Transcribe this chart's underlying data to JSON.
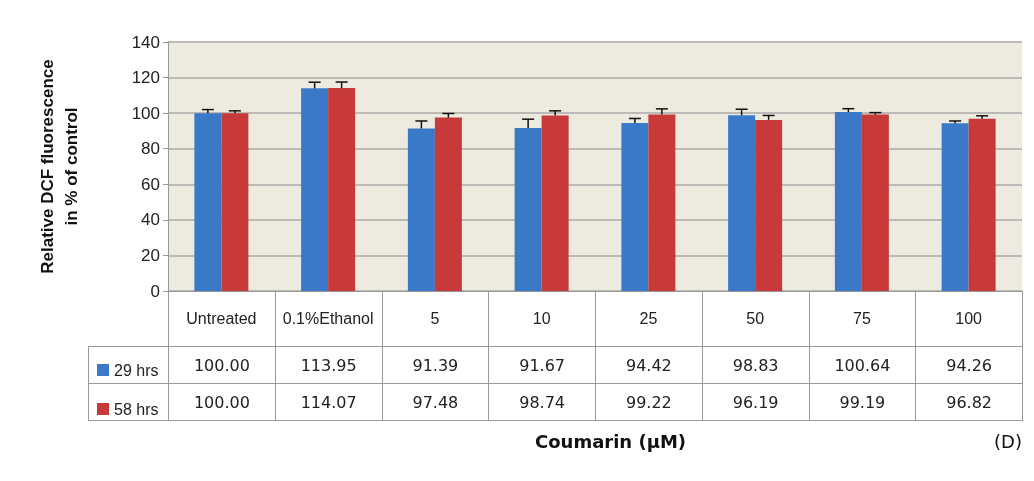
{
  "chart_data": {
    "type": "bar",
    "ylabel": "Relative DCF fluorescence in % of control",
    "annotations": [
      "Coumarin (µM)",
      "(D)"
    ],
    "categories": [
      "Untreated",
      "0.1%Ethanol",
      "5",
      "10",
      "25",
      "50",
      "75",
      "100"
    ],
    "series": [
      {
        "name": "29 hrs",
        "color": "#3a78c8",
        "values": [
          100.0,
          113.95,
          91.39,
          91.67,
          94.42,
          98.83,
          100.64,
          94.26
        ],
        "value_labels": [
          "100.00",
          "113.95",
          "91.39",
          "91.67",
          "94.42",
          "98.83",
          "100.64",
          "94.26"
        ],
        "errors": [
          [
            100.0,
            102.0
          ],
          [
            113.95,
            117.4
          ],
          [
            91.39,
            95.6
          ],
          [
            91.67,
            96.6
          ],
          [
            94.42,
            97.0
          ],
          [
            98.83,
            102.2
          ],
          [
            100.64,
            102.5
          ],
          [
            94.26,
            95.6
          ]
        ]
      },
      {
        "name": "58 hrs",
        "color": "#c83a3a",
        "values": [
          100.0,
          114.07,
          97.48,
          98.74,
          99.22,
          96.19,
          99.19,
          96.82
        ],
        "value_labels": [
          "100.00",
          "114.07",
          "97.48",
          "98.74",
          "99.22",
          "96.19",
          "99.19",
          "96.82"
        ],
        "errors": [
          [
            100.0,
            101.3
          ],
          [
            114.07,
            117.5
          ],
          [
            97.48,
            99.8
          ],
          [
            98.74,
            101.3
          ],
          [
            99.22,
            102.4
          ],
          [
            96.19,
            98.7
          ],
          [
            99.19,
            100.3
          ],
          [
            96.82,
            98.5
          ]
        ]
      }
    ],
    "ylim": [
      0,
      140
    ],
    "yticks": [
      0,
      20,
      40,
      60,
      80,
      100,
      120,
      140
    ],
    "grid": "y",
    "legend": "bottom left"
  }
}
